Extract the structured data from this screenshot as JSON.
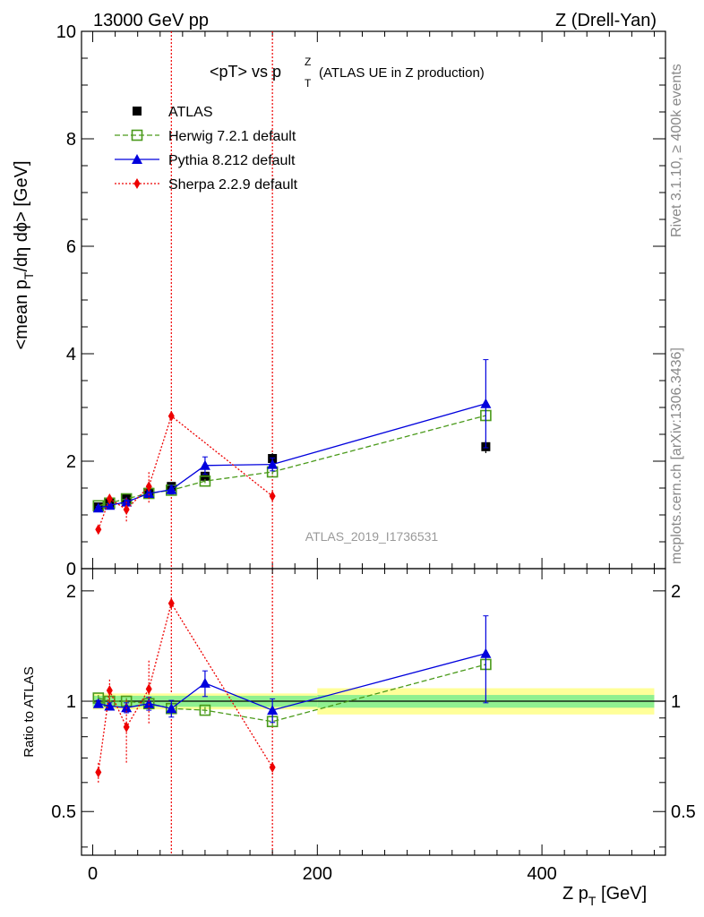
{
  "header": {
    "energy": "13000 GeV pp",
    "process": "Z (Drell-Yan)",
    "plot_title_main": "<pT> vs p",
    "plot_title_sup": "Z",
    "plot_title_sub": "T",
    "plot_title_tail": "(ATLAS UE in Z production)",
    "rivet_label": "Rivet 3.1.10, ≥ 400k events",
    "mcplots_label": "mcplots.cern.ch [arXiv:1306.3436]",
    "analysis_label": "ATLAS_2019_I1736531"
  },
  "axes": {
    "main_ylabel": "<mean p_T/dη dϕ> [GeV]",
    "main_ylabel_parts": [
      "<mean p",
      "T",
      "/dη dϕ> [GeV]"
    ],
    "ratio_ylabel": "Ratio to ATLAS",
    "xlabel_parts": [
      "Z p",
      "T",
      " [GeV]"
    ],
    "main_yticks": [
      "0",
      "2",
      "4",
      "6",
      "8",
      "10"
    ],
    "ratio_yticks": [
      "0.5",
      "1",
      "2"
    ],
    "xticks": [
      "0",
      "200",
      "400"
    ]
  },
  "colors": {
    "data": "#000000",
    "herwig": "#4a9a1a",
    "pythia": "#0000dd",
    "sherpa": "#ee0000",
    "band_inner": "#90f090",
    "band_outer": "#ffff99"
  },
  "legend": [
    {
      "label": "ATLAS",
      "key": "data"
    },
    {
      "label": "Herwig 7.2.1 default",
      "key": "herwig"
    },
    {
      "label": "Pythia 8.212 default",
      "key": "pythia"
    },
    {
      "label": "Sherpa 2.2.9 default",
      "key": "sherpa"
    }
  ],
  "chart_data": [
    {
      "type": "line",
      "panel": "main",
      "xlim": [
        -10,
        510
      ],
      "ylim": [
        0,
        10
      ],
      "vlines": [
        70,
        160
      ],
      "series": [
        {
          "name": "ATLAS",
          "key": "data",
          "style": "marker",
          "x": [
            5,
            15,
            30,
            50,
            70,
            100,
            160,
            350
          ],
          "y": [
            1.15,
            1.22,
            1.3,
            1.42,
            1.53,
            1.72,
            2.05,
            2.27
          ],
          "err": [
            0.05,
            0.05,
            0.06,
            0.06,
            0.07,
            0.08,
            0.1,
            0.12
          ]
        },
        {
          "name": "Herwig 7.2.1 default",
          "key": "herwig",
          "style": "dashed",
          "x": [
            5,
            15,
            30,
            50,
            70,
            100,
            160,
            350
          ],
          "y": [
            1.17,
            1.22,
            1.3,
            1.4,
            1.46,
            1.63,
            1.8,
            2.85
          ],
          "err": [
            0.02,
            0.02,
            0.02,
            0.03,
            0.03,
            0.04,
            0.05,
            0.1
          ]
        },
        {
          "name": "Pythia 8.212 default",
          "key": "pythia",
          "style": "solid",
          "x": [
            5,
            15,
            30,
            50,
            70,
            100,
            160,
            350
          ],
          "y": [
            1.13,
            1.18,
            1.24,
            1.4,
            1.47,
            1.92,
            1.94,
            3.07
          ],
          "err": [
            0.03,
            0.03,
            0.04,
            0.05,
            0.08,
            0.16,
            0.12,
            0.82
          ]
        },
        {
          "name": "Sherpa 2.2.9 default",
          "key": "sherpa",
          "style": "dotted",
          "x": [
            5,
            15,
            30,
            50,
            70,
            160
          ],
          "y": [
            0.73,
            1.3,
            1.1,
            1.53,
            2.84,
            1.35
          ],
          "err": [
            0.05,
            0.1,
            0.22,
            0.3,
            0.05,
            0.05
          ]
        }
      ]
    },
    {
      "type": "line",
      "panel": "ratio",
      "xlim": [
        -10,
        510
      ],
      "ylim": [
        0.38,
        2.3
      ],
      "log_y": true,
      "bands": [
        {
          "x": [
            0,
            200
          ],
          "inner": [
            0.965,
            1.035
          ],
          "outer": [
            0.95,
            1.05
          ]
        },
        {
          "x": [
            200,
            500
          ],
          "inner": [
            0.96,
            1.04
          ],
          "outer": [
            0.92,
            1.085
          ]
        }
      ],
      "series": [
        {
          "name": "Herwig 7.2.1 default",
          "key": "herwig",
          "style": "dashed",
          "x": [
            5,
            15,
            30,
            50,
            70,
            100,
            160,
            350
          ],
          "y": [
            1.02,
            1.0,
            1.0,
            0.985,
            0.955,
            0.945,
            0.88,
            1.26
          ],
          "err": [
            0.02,
            0.02,
            0.02,
            0.02,
            0.02,
            0.02,
            0.03,
            0.04
          ]
        },
        {
          "name": "Pythia 8.212 default",
          "key": "pythia",
          "style": "solid",
          "x": [
            5,
            15,
            30,
            50,
            70,
            100,
            160,
            350
          ],
          "y": [
            0.985,
            0.97,
            0.96,
            0.985,
            0.955,
            1.12,
            0.945,
            1.35
          ],
          "err": [
            0.02,
            0.02,
            0.03,
            0.04,
            0.05,
            0.09,
            0.07,
            0.36
          ]
        },
        {
          "name": "Sherpa 2.2.9 default",
          "key": "sherpa",
          "style": "dotted",
          "x": [
            5,
            15,
            30,
            50,
            70,
            160
          ],
          "y": [
            0.64,
            1.07,
            0.85,
            1.08,
            1.85,
            0.66
          ],
          "err": [
            0.04,
            0.08,
            0.17,
            0.21,
            0.04,
            0.03
          ]
        }
      ]
    }
  ]
}
